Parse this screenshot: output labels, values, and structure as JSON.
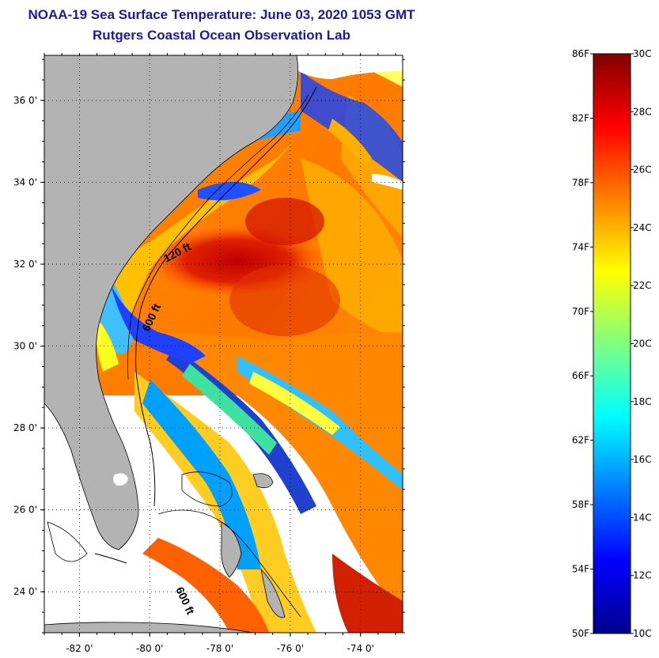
{
  "title": "NOAA-19 Sea Surface Temperature:  June 03, 2020 1053 GMT",
  "subtitle": "Rutgers Coastal Ocean Observation Lab",
  "map": {
    "lon_ticks": [
      -82,
      -80,
      -78,
      -76,
      -74
    ],
    "lon_labels": [
      "-82 0'",
      "-80 0'",
      "-78 0'",
      "-76 0'",
      "-74 0'"
    ],
    "lat_ticks": [
      36,
      34,
      32,
      30,
      28,
      26,
      24
    ],
    "lat_labels": [
      "36 0'",
      "34 0'",
      "32 0'",
      "30 0'",
      "28 0'",
      "26 0'",
      "24 0'"
    ],
    "lon_range": [
      -83,
      -72.8
    ],
    "lat_range": [
      23,
      37.1
    ],
    "contour_labels": [
      "120 ft",
      "600 ft",
      "600 ft"
    ],
    "land_color": "#b3b3b3",
    "cloud_color": "#ffffff"
  },
  "colorbar": {
    "fahrenheit_labels": [
      "86F",
      "82F",
      "78F",
      "74F",
      "70F",
      "66F",
      "62F",
      "58F",
      "54F",
      "50F"
    ],
    "celsius_labels": [
      "30C",
      "28C",
      "26C",
      "24C",
      "22C",
      "20C",
      "18C",
      "16C",
      "14C",
      "12C",
      "10C"
    ],
    "range_c": [
      10,
      30
    ],
    "colormap": "jet"
  }
}
